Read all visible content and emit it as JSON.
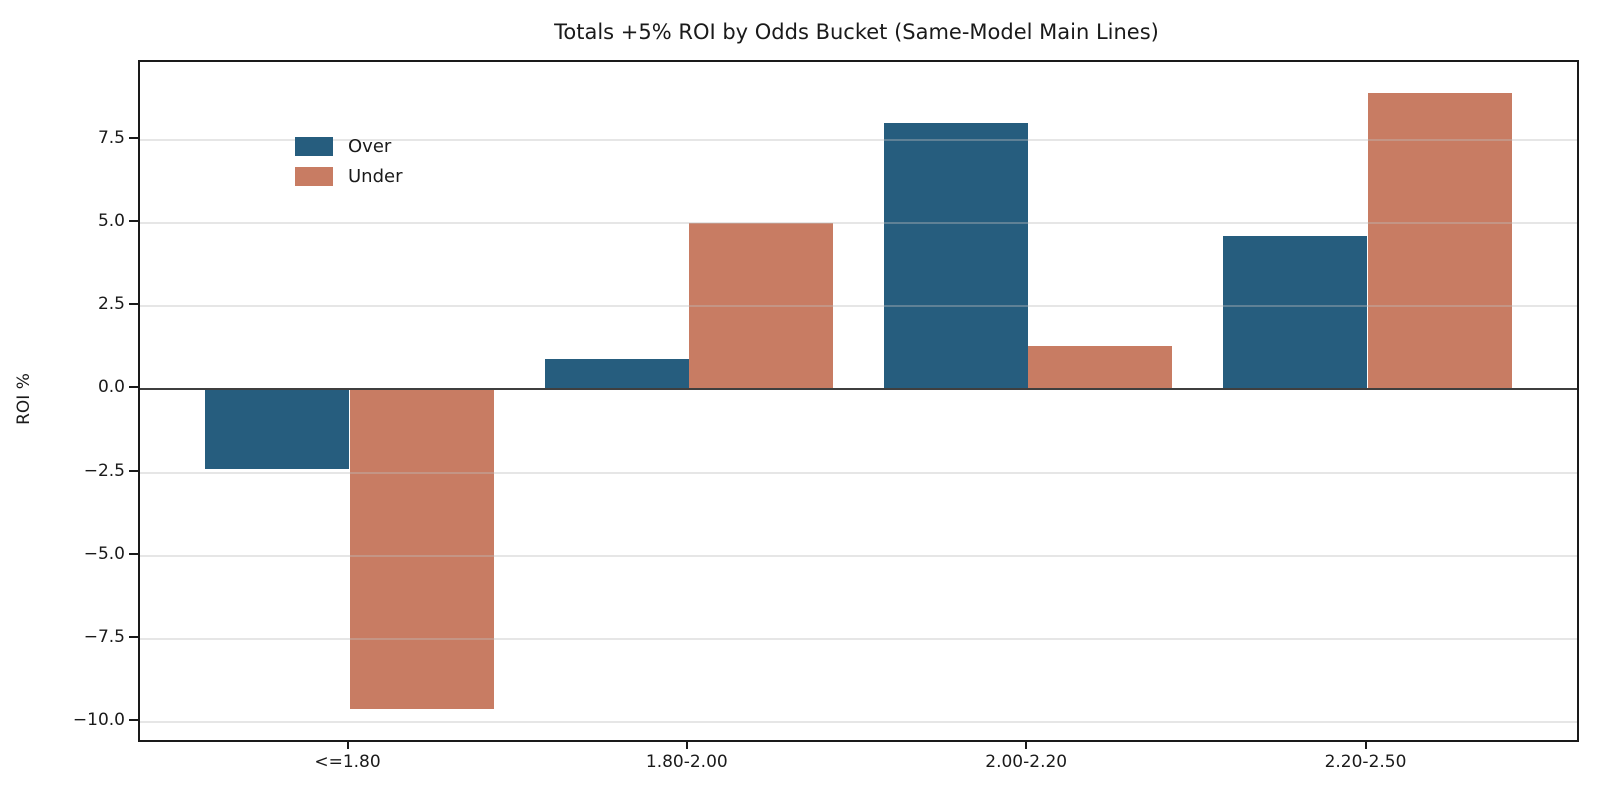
{
  "chart_data": {
    "type": "bar",
    "title": "Totals +5% ROI by Odds Bucket (Same-Model Main Lines)",
    "xlabel": "",
    "ylabel": "ROI %",
    "categories": [
      "<=1.80",
      "1.80-2.00",
      "2.00-2.20",
      "2.20-2.50"
    ],
    "series": [
      {
        "name": "Over",
        "color": "#265D7E",
        "values": [
          -2.4,
          0.9,
          8.0,
          4.6
        ]
      },
      {
        "name": "Under",
        "color": "#C87C63",
        "values": [
          -9.6,
          5.0,
          1.3,
          8.9
        ]
      }
    ],
    "yticks": [
      7.5,
      5.0,
      2.5,
      0.0,
      -2.5,
      -5.0,
      -7.5,
      -10.0
    ],
    "ylim": [
      -10.53,
      9.83
    ],
    "xlim": [
      -0.6175,
      3.6175
    ],
    "bar_width_units": 0.425,
    "grid": "horizontal",
    "legend_position": "upper-left",
    "zero_line": true
  }
}
